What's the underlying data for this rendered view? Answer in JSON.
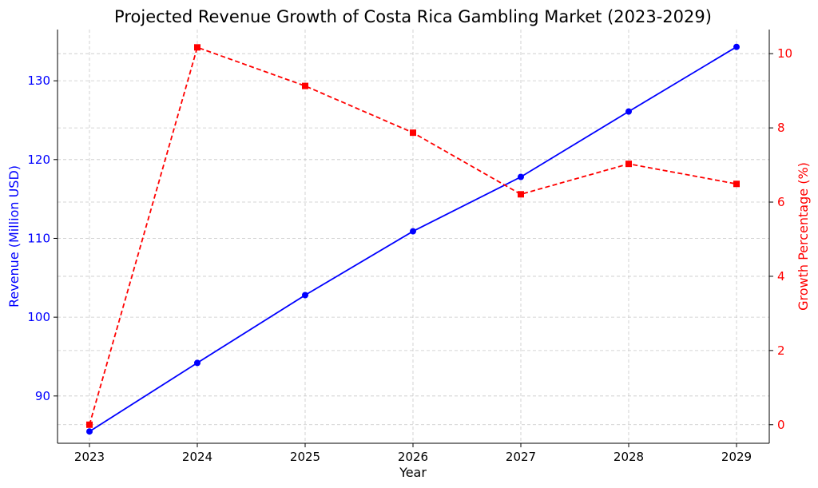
{
  "chart_data": {
    "type": "line",
    "title": "Projected Revenue Growth of Costa Rica Gambling Market (2023-2029)",
    "xlabel": "Year",
    "ylabel_left": "Revenue (Million USD)",
    "ylabel_right": "Growth Percentage (%)",
    "x": [
      "2023",
      "2024",
      "2025",
      "2026",
      "2027",
      "2028",
      "2029"
    ],
    "ylim_left": [
      84,
      136.5
    ],
    "ylim_right": [
      -0.5,
      10.65
    ],
    "yticks_left": [
      90,
      100,
      110,
      120,
      130
    ],
    "yticks_right": [
      0,
      2,
      4,
      6,
      8,
      10
    ],
    "grid": true,
    "series": [
      {
        "axis": "left",
        "color": "#0000ff",
        "linestyle": "solid",
        "marker": "circle",
        "values": [
          85.5,
          94.2,
          102.8,
          110.9,
          117.8,
          126.1,
          134.3
        ]
      },
      {
        "axis": "right",
        "color": "#ff0000",
        "linestyle": "dashed",
        "marker": "square",
        "values": [
          0,
          10.17,
          9.13,
          7.87,
          6.21,
          7.03,
          6.49
        ]
      }
    ]
  }
}
